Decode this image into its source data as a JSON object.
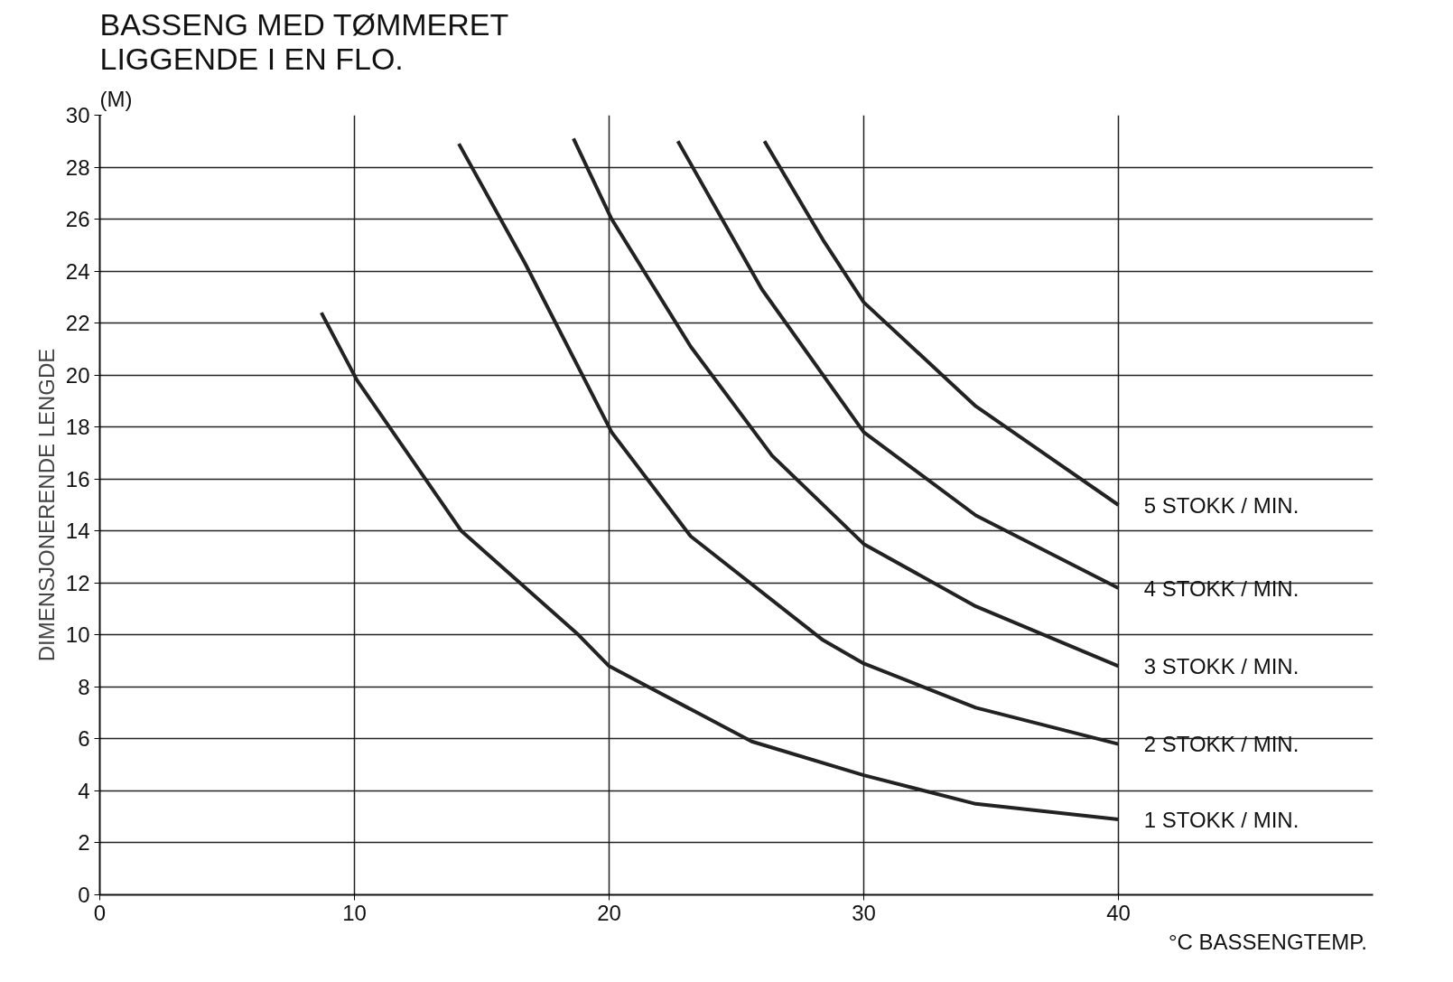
{
  "chart_data": {
    "type": "line",
    "title": "BASSENG MED TØMMERET\nLIGGENDE I EN FLO.",
    "xlabel": "°C  BASSENGTEMP.",
    "ylabel": "DIMENSJONERENDE LENGDE",
    "annotations": [
      "(M)"
    ],
    "xlim": [
      0,
      50
    ],
    "ylim": [
      0,
      30
    ],
    "xticks": [
      0,
      10,
      20,
      30,
      40
    ],
    "yticks": [
      0,
      2,
      4,
      6,
      8,
      10,
      12,
      14,
      16,
      18,
      20,
      22,
      24,
      26,
      28,
      30
    ],
    "grid": true,
    "marker": "none",
    "line_style": "solid",
    "series": [
      {
        "name": "1 STOKK / MIN.",
        "color": "#222222",
        "x": [
          8.7,
          10.1,
          14.2,
          18.8,
          20,
          25.6,
          30,
          34.4,
          40
        ],
        "values": [
          22.4,
          19.8,
          14,
          10,
          8.8,
          5.9,
          4.6,
          3.5,
          2.9
        ]
      },
      {
        "name": "2 STOKK / MIN.",
        "color": "#222222",
        "x": [
          14.1,
          16.7,
          20.1,
          23.2,
          28.4,
          30,
          34.4,
          40
        ],
        "values": [
          28.9,
          24.3,
          17.8,
          13.8,
          9.8,
          8.9,
          7.2,
          5.8
        ]
      },
      {
        "name": "3 STOKK / MIN.",
        "color": "#222222",
        "x": [
          18.6,
          20.1,
          23.2,
          26.4,
          30,
          34.4,
          40
        ],
        "values": [
          29.1,
          26,
          21.1,
          16.9,
          13.5,
          11.1,
          8.8
        ]
      },
      {
        "name": "4 STOKK / MIN.",
        "color": "#222222",
        "x": [
          22.7,
          26,
          30,
          34.4,
          40
        ],
        "values": [
          29,
          23.3,
          17.8,
          14.6,
          11.8
        ]
      },
      {
        "name": "5 STOKK / MIN.",
        "color": "#222222",
        "x": [
          26.1,
          28.4,
          30,
          34.4,
          40
        ],
        "values": [
          29,
          25.2,
          22.8,
          18.8,
          15
        ]
      }
    ]
  }
}
